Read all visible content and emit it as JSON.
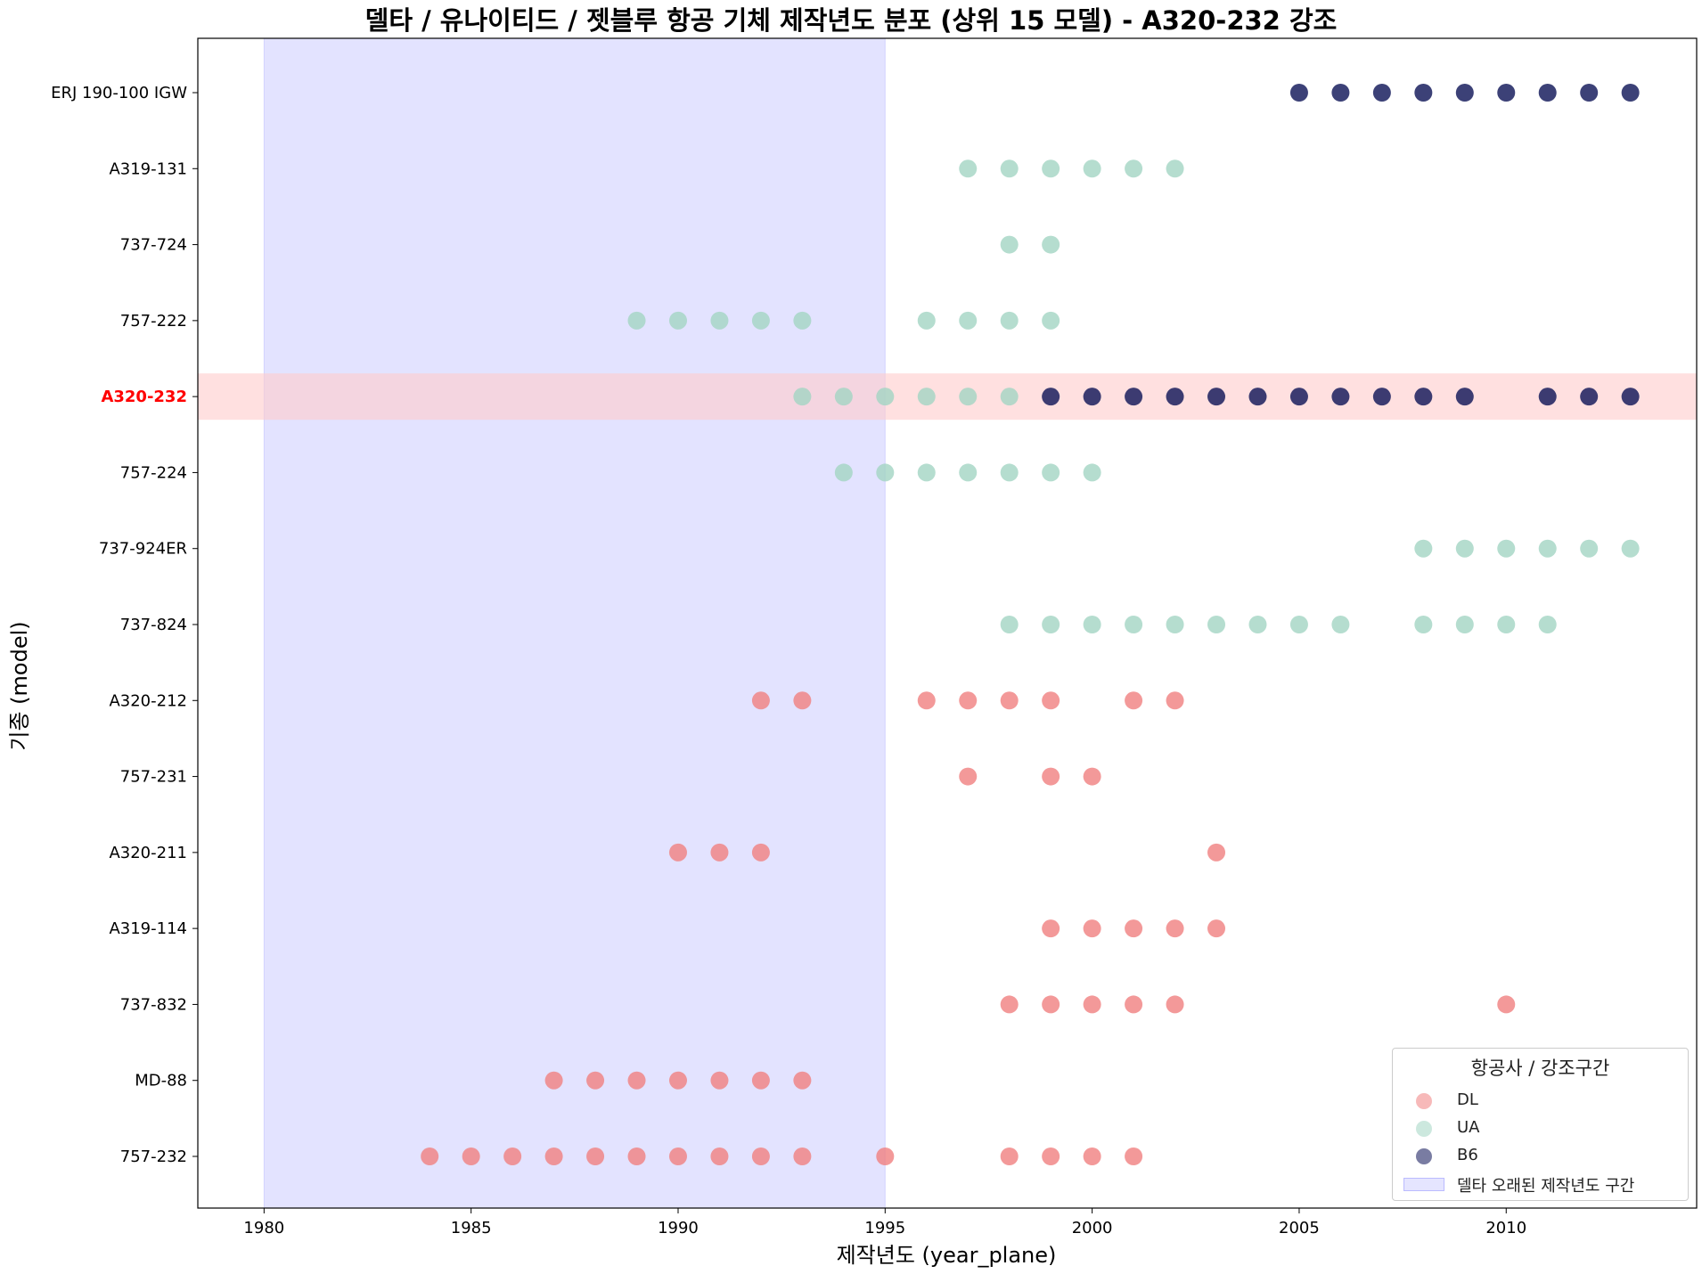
{
  "chart_data": {
    "type": "scatter",
    "title": "델타 / 유나이티드 / 젯블루 항공 기체 제작년도 분포 (상위 15 모델) - A320-232 강조",
    "xlabel": "제작년도 (year_plane)",
    "ylabel": "기종 (model)",
    "xlim": [
      1978.4,
      2014.6
    ],
    "xticks": [
      1980,
      1985,
      1990,
      1995,
      2000,
      2005,
      2010
    ],
    "grid": false,
    "legend_position": "lower-right",
    "legend_title": "항공사 / 강조구간",
    "highlight_model": "A320-232",
    "highlight_model_color": "#ff0000",
    "highlight_band_color": "#ffcccc",
    "shaded_range": {
      "label": "델타 오래된 제작년도 구간",
      "x": [
        1980,
        1995
      ],
      "color": "#0000ff"
    },
    "categories": [
      "757-232",
      "MD-88",
      "737-832",
      "A319-114",
      "A320-211",
      "757-231",
      "A320-212",
      "737-824",
      "737-924ER",
      "757-224",
      "A320-232",
      "757-222",
      "737-724",
      "A319-131",
      "ERJ 190-100 IGW"
    ],
    "series": [
      {
        "name": "DL",
        "color": "#f08080",
        "points": [
          {
            "model": "757-232",
            "years": [
              1984,
              1985,
              1986,
              1987,
              1988,
              1989,
              1990,
              1991,
              1992,
              1993,
              1995,
              1998,
              1999,
              2000,
              2001
            ]
          },
          {
            "model": "MD-88",
            "years": [
              1987,
              1988,
              1989,
              1990,
              1991,
              1992,
              1993
            ]
          },
          {
            "model": "737-832",
            "years": [
              1998,
              1999,
              2000,
              2001,
              2002,
              2010
            ]
          },
          {
            "model": "A319-114",
            "years": [
              1999,
              2000,
              2001,
              2002,
              2003
            ]
          },
          {
            "model": "A320-211",
            "years": [
              1990,
              1991,
              1992,
              2003
            ]
          },
          {
            "model": "757-231",
            "years": [
              1997,
              1999,
              2000
            ]
          },
          {
            "model": "A320-212",
            "years": [
              1992,
              1993,
              1996,
              1997,
              1998,
              1999,
              2001,
              2002
            ]
          }
        ]
      },
      {
        "name": "UA",
        "color": "#a3d5c3",
        "points": [
          {
            "model": "737-824",
            "years": [
              1998,
              1999,
              2000,
              2001,
              2002,
              2003,
              2004,
              2005,
              2006,
              2008,
              2009,
              2010,
              2011
            ]
          },
          {
            "model": "737-924ER",
            "years": [
              2008,
              2009,
              2010,
              2011,
              2012,
              2013
            ]
          },
          {
            "model": "757-224",
            "years": [
              1994,
              1995,
              1996,
              1997,
              1998,
              1999,
              2000
            ]
          },
          {
            "model": "A320-232",
            "years": [
              1993,
              1994,
              1995,
              1996,
              1997,
              1998
            ]
          },
          {
            "model": "757-222",
            "years": [
              1989,
              1990,
              1991,
              1992,
              1993,
              1996,
              1997,
              1998,
              1999
            ]
          },
          {
            "model": "737-724",
            "years": [
              1998,
              1999
            ]
          },
          {
            "model": "A319-131",
            "years": [
              1997,
              1998,
              1999,
              2000,
              2001,
              2002
            ]
          }
        ]
      },
      {
        "name": "B6",
        "color": "#0b1155",
        "points": [
          {
            "model": "A320-232",
            "years": [
              1999,
              2000,
              2001,
              2002,
              2003,
              2004,
              2005,
              2006,
              2007,
              2008,
              2009,
              2011,
              2012,
              2013
            ]
          },
          {
            "model": "ERJ 190-100 IGW",
            "years": [
              2005,
              2006,
              2007,
              2008,
              2009,
              2010,
              2011,
              2012,
              2013
            ]
          }
        ]
      }
    ]
  }
}
